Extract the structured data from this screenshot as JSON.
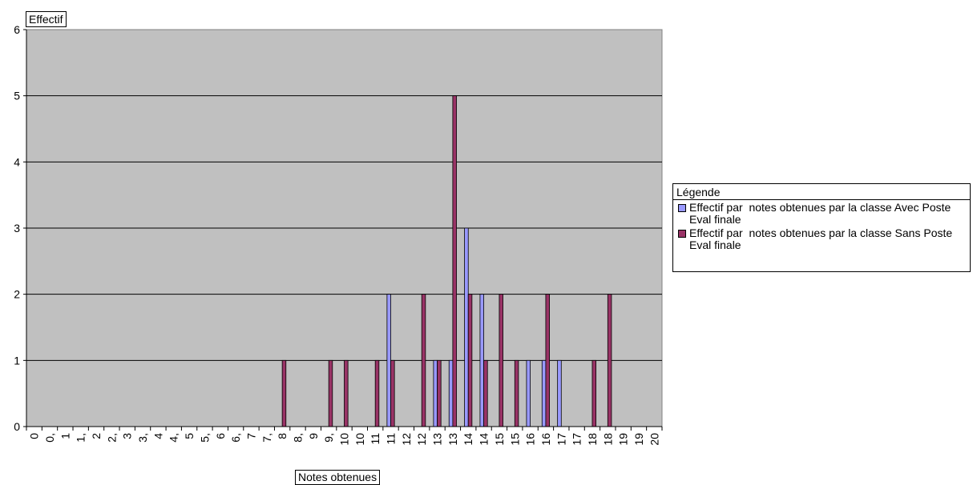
{
  "chart_data": {
    "type": "bar",
    "title": "",
    "xlabel": "Notes obtenues",
    "ylabel": "Effectif",
    "ylim": [
      0,
      6
    ],
    "yticks": [
      0,
      1,
      2,
      3,
      4,
      5,
      6
    ],
    "grid": true,
    "legend_title": "Légende",
    "legend_position": "right",
    "categories": [
      "0",
      "0,",
      "1",
      "1,",
      "2",
      "2,",
      "3",
      "3,",
      "4",
      "4,",
      "5",
      "5,",
      "6",
      "6,",
      "7",
      "7,",
      "8",
      "8,",
      "9",
      "9,",
      "10",
      "10",
      "11",
      "11",
      "12",
      "12",
      "13",
      "13",
      "14",
      "14",
      "15",
      "15",
      "16",
      "16",
      "17",
      "17",
      "18",
      "18",
      "19",
      "19",
      "20"
    ],
    "series": [
      {
        "name": "Effectif par  notes obtenues par la classe Avec Poste  Eval finale",
        "color": "#9999ff",
        "values": [
          0,
          0,
          0,
          0,
          0,
          0,
          0,
          0,
          0,
          0,
          0,
          0,
          0,
          0,
          0,
          0,
          0,
          0,
          0,
          0,
          0,
          0,
          0,
          2,
          0,
          0,
          1,
          1,
          3,
          2,
          0,
          0,
          1,
          1,
          1,
          0,
          0,
          0,
          0,
          0,
          0
        ]
      },
      {
        "name": "Effectif par  notes obtenues par la classe Sans Poste  Eval finale",
        "color": "#993366",
        "values": [
          0,
          0,
          0,
          0,
          0,
          0,
          0,
          0,
          0,
          0,
          0,
          0,
          0,
          0,
          0,
          0,
          1,
          0,
          0,
          1,
          1,
          0,
          1,
          1,
          0,
          2,
          1,
          5,
          2,
          1,
          2,
          1,
          0,
          2,
          0,
          0,
          1,
          2,
          0,
          0,
          0
        ]
      }
    ]
  }
}
